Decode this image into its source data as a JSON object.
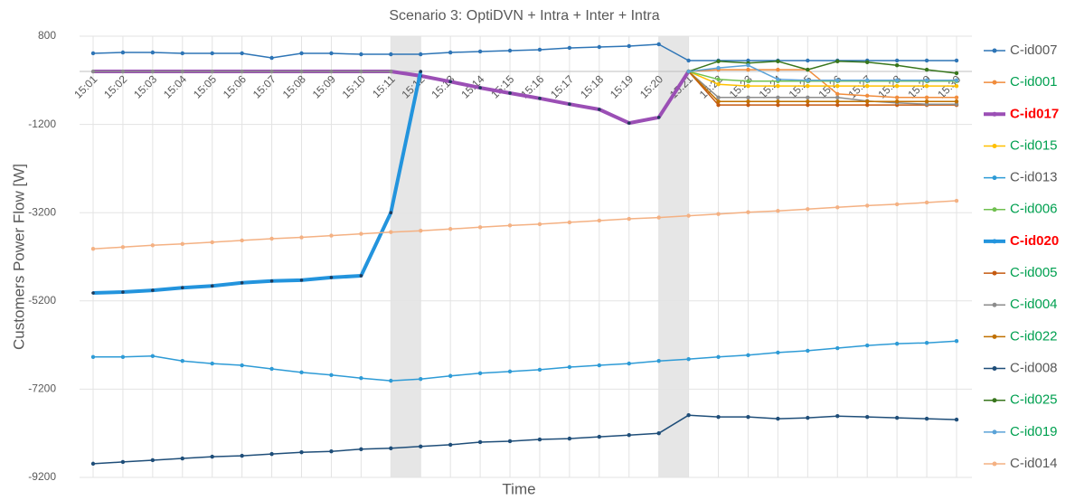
{
  "chart_data": {
    "type": "line",
    "title": "Scenario 3: OptiDVN + Intra + Inter + Intra",
    "x_label": "Time",
    "y_label": "Customers Power Flow [W]",
    "categories": [
      "15:01",
      "15:02",
      "15:03",
      "15:04",
      "15:05",
      "15:06",
      "15:07",
      "15:08",
      "15:09",
      "15:10",
      "15:11",
      "15:12",
      "15:13",
      "15:14",
      "15:15",
      "15:16",
      "15:17",
      "15:18",
      "15:19",
      "15:20",
      "15:21",
      "15:22",
      "15:23",
      "15:24",
      "15:25",
      "15:26",
      "15:27",
      "15:28",
      "15:29",
      "15:30"
    ],
    "ylim": [
      -9200,
      800
    ],
    "yticks": [
      800,
      -1200,
      -3200,
      -5200,
      -7200,
      -9200
    ],
    "grid": true,
    "legend": "right",
    "highlight_bands": [
      [
        10,
        11
      ],
      [
        19,
        20
      ]
    ],
    "series": [
      {
        "name": "C-id007",
        "color": "#2e75b6",
        "text_color": "#595959",
        "width": 1.5,
        "values": [
          411,
          431,
          431,
          411,
          411,
          411,
          308,
          411,
          411,
          390,
          390,
          390,
          431,
          452,
          472,
          493,
          534,
          554,
          575,
          616,
          247,
          247,
          247,
          247,
          247,
          247,
          247,
          247,
          247,
          247
        ]
      },
      {
        "name": "C-id001",
        "color": "#f08c3c",
        "text_color": "#00a050",
        "width": 1.5,
        "values": [
          null,
          null,
          null,
          null,
          null,
          null,
          null,
          null,
          null,
          null,
          null,
          null,
          null,
          null,
          null,
          null,
          null,
          null,
          null,
          null,
          0,
          40,
          40,
          40,
          40,
          -510,
          -550,
          -590,
          -590,
          -590
        ]
      },
      {
        "name": "C-id017",
        "color": "#9b4fb5",
        "text_color": "#ff0000",
        "bold": true,
        "width": 4,
        "values": [
          0,
          0,
          0,
          0,
          0,
          0,
          0,
          0,
          0,
          0,
          0,
          -100,
          -230,
          -370,
          -490,
          -610,
          -740,
          -860,
          -1170,
          -1040,
          0,
          null,
          null,
          null,
          null,
          null,
          null,
          null,
          null,
          null
        ]
      },
      {
        "name": "C-id015",
        "color": "#ffc000",
        "text_color": "#00a050",
        "width": 1.5,
        "values": [
          null,
          null,
          null,
          null,
          null,
          null,
          null,
          null,
          null,
          null,
          null,
          null,
          null,
          null,
          null,
          null,
          null,
          null,
          null,
          null,
          0,
          -290,
          -330,
          -330,
          -330,
          -330,
          -330,
          -330,
          -330,
          -330
        ]
      },
      {
        "name": "C-id013",
        "color": "#2e9bd6",
        "text_color": "#595959",
        "width": 1.5,
        "values": [
          -6470,
          -6470,
          -6450,
          -6560,
          -6620,
          -6660,
          -6740,
          -6820,
          -6880,
          -6950,
          -7010,
          -6970,
          -6900,
          -6840,
          -6800,
          -6760,
          -6700,
          -6660,
          -6620,
          -6560,
          -6520,
          -6470,
          -6430,
          -6370,
          -6330,
          -6270,
          -6210,
          -6170,
          -6150,
          -6110
        ]
      },
      {
        "name": "C-id006",
        "color": "#70c050",
        "text_color": "#00a050",
        "width": 1.5,
        "values": [
          null,
          null,
          null,
          null,
          null,
          null,
          null,
          null,
          null,
          null,
          null,
          null,
          null,
          null,
          null,
          null,
          null,
          null,
          null,
          null,
          0,
          -180,
          -220,
          -220,
          -220,
          -220,
          -220,
          -220,
          -220,
          -220
        ]
      },
      {
        "name": "C-id020",
        "color": "#2394dd",
        "text_color": "#ff0000",
        "bold": true,
        "width": 4,
        "values": [
          -5020,
          -5000,
          -4960,
          -4900,
          -4860,
          -4790,
          -4750,
          -4730,
          -4670,
          -4630,
          -3200,
          0,
          null,
          null,
          null,
          null,
          null,
          null,
          null,
          null,
          null,
          null,
          null,
          null,
          null,
          null,
          null,
          null,
          null,
          null
        ]
      },
      {
        "name": "C-id005",
        "color": "#c55a11",
        "text_color": "#00a050",
        "width": 1.5,
        "values": [
          null,
          null,
          null,
          null,
          null,
          null,
          null,
          null,
          null,
          null,
          null,
          null,
          null,
          null,
          null,
          null,
          null,
          null,
          null,
          null,
          0,
          -760,
          -760,
          -760,
          -760,
          -760,
          -760,
          -760,
          -760,
          -760
        ]
      },
      {
        "name": "C-id004",
        "color": "#8c8c8c",
        "text_color": "#00a050",
        "width": 1.5,
        "values": [
          0,
          0,
          0,
          0,
          0,
          0,
          0,
          0,
          0,
          0,
          0,
          null,
          null,
          null,
          null,
          null,
          null,
          null,
          null,
          null,
          0,
          -590,
          -590,
          -590,
          -590,
          -590,
          -670,
          -710,
          -740,
          -740
        ]
      },
      {
        "name": "C-id022",
        "color": "#c07000",
        "text_color": "#00a050",
        "width": 1.5,
        "values": [
          null,
          null,
          null,
          null,
          null,
          null,
          null,
          null,
          null,
          null,
          null,
          null,
          null,
          null,
          null,
          null,
          null,
          null,
          null,
          null,
          0,
          -680,
          -680,
          -680,
          -680,
          -680,
          -680,
          -680,
          -680,
          -680
        ]
      },
      {
        "name": "C-id008",
        "color": "#1f4e79",
        "text_color": "#595959",
        "width": 1.5,
        "values": [
          -8890,
          -8850,
          -8810,
          -8770,
          -8730,
          -8710,
          -8670,
          -8630,
          -8610,
          -8560,
          -8540,
          -8500,
          -8460,
          -8400,
          -8380,
          -8340,
          -8320,
          -8280,
          -8240,
          -8200,
          -7790,
          -7830,
          -7830,
          -7870,
          -7850,
          -7810,
          -7830,
          -7850,
          -7870,
          -7890
        ]
      },
      {
        "name": "C-id025",
        "color": "#38761d",
        "text_color": "#00a050",
        "width": 1.5,
        "values": [
          null,
          null,
          null,
          null,
          null,
          null,
          null,
          null,
          null,
          null,
          null,
          null,
          null,
          null,
          null,
          null,
          null,
          null,
          null,
          null,
          0,
          230,
          190,
          230,
          40,
          230,
          210,
          140,
          40,
          -40
        ]
      },
      {
        "name": "C-id019",
        "color": "#5ba3d8",
        "text_color": "#00a050",
        "width": 1.5,
        "values": [
          null,
          null,
          null,
          null,
          null,
          null,
          null,
          null,
          null,
          null,
          null,
          null,
          null,
          null,
          null,
          null,
          null,
          null,
          null,
          null,
          0,
          80,
          140,
          -180,
          -200,
          -200,
          -200,
          -200,
          -200,
          -200
        ]
      },
      {
        "name": "C-id014",
        "color": "#f4b183",
        "text_color": "#595959",
        "width": 1.5,
        "values": [
          -4020,
          -3980,
          -3940,
          -3910,
          -3870,
          -3830,
          -3790,
          -3760,
          -3720,
          -3680,
          -3640,
          -3610,
          -3570,
          -3530,
          -3490,
          -3460,
          -3420,
          -3380,
          -3340,
          -3310,
          -3270,
          -3230,
          -3190,
          -3160,
          -3120,
          -3080,
          -3040,
          -3010,
          -2970,
          -2930
        ]
      }
    ]
  }
}
